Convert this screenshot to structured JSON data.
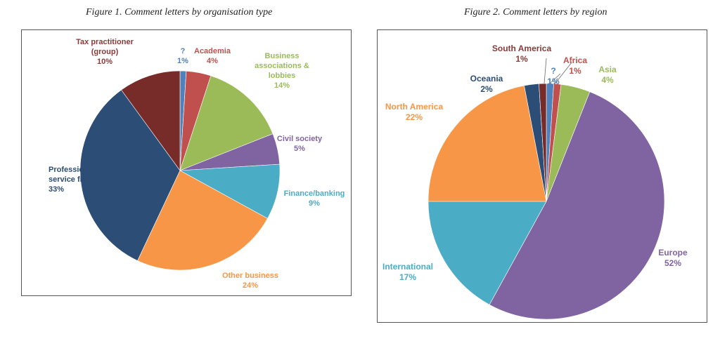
{
  "figure1": {
    "title": "Figure 1. Comment letters by organisation type"
  },
  "figure2": {
    "title": "Figure 2. Comment letters by region"
  },
  "chart_data": [
    {
      "type": "pie",
      "title": "Figure 1. Comment letters by organisation type",
      "unit": "%",
      "slices": [
        {
          "lines": [
            "?"
          ],
          "value": 1,
          "label": "1%",
          "color": "#4f81bd"
        },
        {
          "lines": [
            "Academia"
          ],
          "value": 4,
          "label": "4%",
          "color": "#c0504d"
        },
        {
          "lines": [
            "Business",
            "associations  &",
            "lobbies"
          ],
          "value": 14,
          "label": "14%",
          "color": "#9bbb59"
        },
        {
          "lines": [
            "Civil society"
          ],
          "value": 5,
          "label": "5%",
          "color": "#8064a2"
        },
        {
          "lines": [
            "Finance/banking"
          ],
          "value": 9,
          "label": "9%",
          "color": "#4bacc6"
        },
        {
          "lines": [
            "Other business"
          ],
          "value": 24,
          "label": "24%",
          "color": "#f79646"
        },
        {
          "lines": [
            "Professional",
            "service firms"
          ],
          "value": 33,
          "label": "33%",
          "color": "#2c4d75"
        },
        {
          "lines": [
            "Tax practitioner",
            "(group)"
          ],
          "value": 10,
          "label": "10%",
          "color": "#772c2a"
        }
      ]
    },
    {
      "type": "pie",
      "title": "Figure 2. Comment letters by region",
      "unit": "%",
      "slices": [
        {
          "lines": [
            "?"
          ],
          "value": 1,
          "label": "1%",
          "color": "#4f81bd"
        },
        {
          "lines": [
            "Africa"
          ],
          "value": 1,
          "label": "1%",
          "color": "#c0504d"
        },
        {
          "lines": [
            "Asia"
          ],
          "value": 4,
          "label": "4%",
          "color": "#9bbb59"
        },
        {
          "lines": [
            "Europe"
          ],
          "value": 52,
          "label": "52%",
          "color": "#8064a2"
        },
        {
          "lines": [
            "International"
          ],
          "value": 17,
          "label": "17%",
          "color": "#4bacc6"
        },
        {
          "lines": [
            "North America"
          ],
          "value": 22,
          "label": "22%",
          "color": "#f79646"
        },
        {
          "lines": [
            "Oceania"
          ],
          "value": 2,
          "label": "2%",
          "color": "#2c4d75"
        },
        {
          "lines": [
            "South America"
          ],
          "value": 1,
          "label": "1%",
          "color": "#772c2a"
        }
      ]
    }
  ]
}
